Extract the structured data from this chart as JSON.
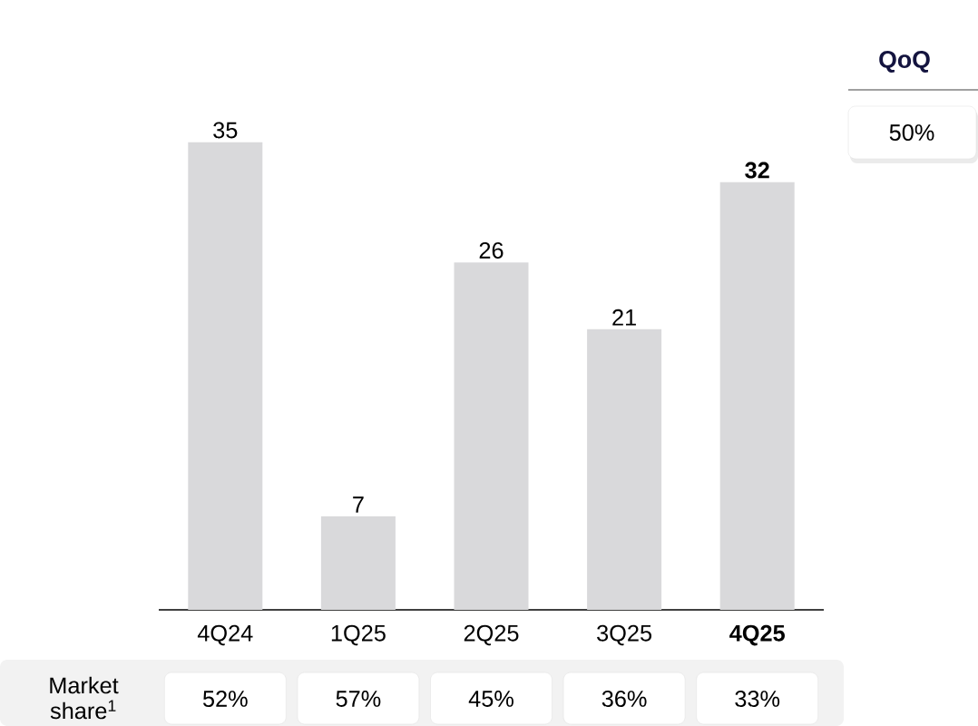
{
  "chart_data": {
    "type": "bar",
    "categories": [
      "4Q24",
      "1Q25",
      "2Q25",
      "3Q25",
      "**4Q25**"
    ],
    "values": [
      35,
      7,
      26,
      21,
      32
    ],
    "value_labels": [
      "35",
      "7",
      "26",
      "21",
      "**32**"
    ],
    "color": "#d9d9db",
    "annotations": [
      "QoQ",
      "50%",
      "Market share$^{1}$",
      "52%",
      "57%",
      "45%",
      "36%",
      "33%"
    ]
  }
}
